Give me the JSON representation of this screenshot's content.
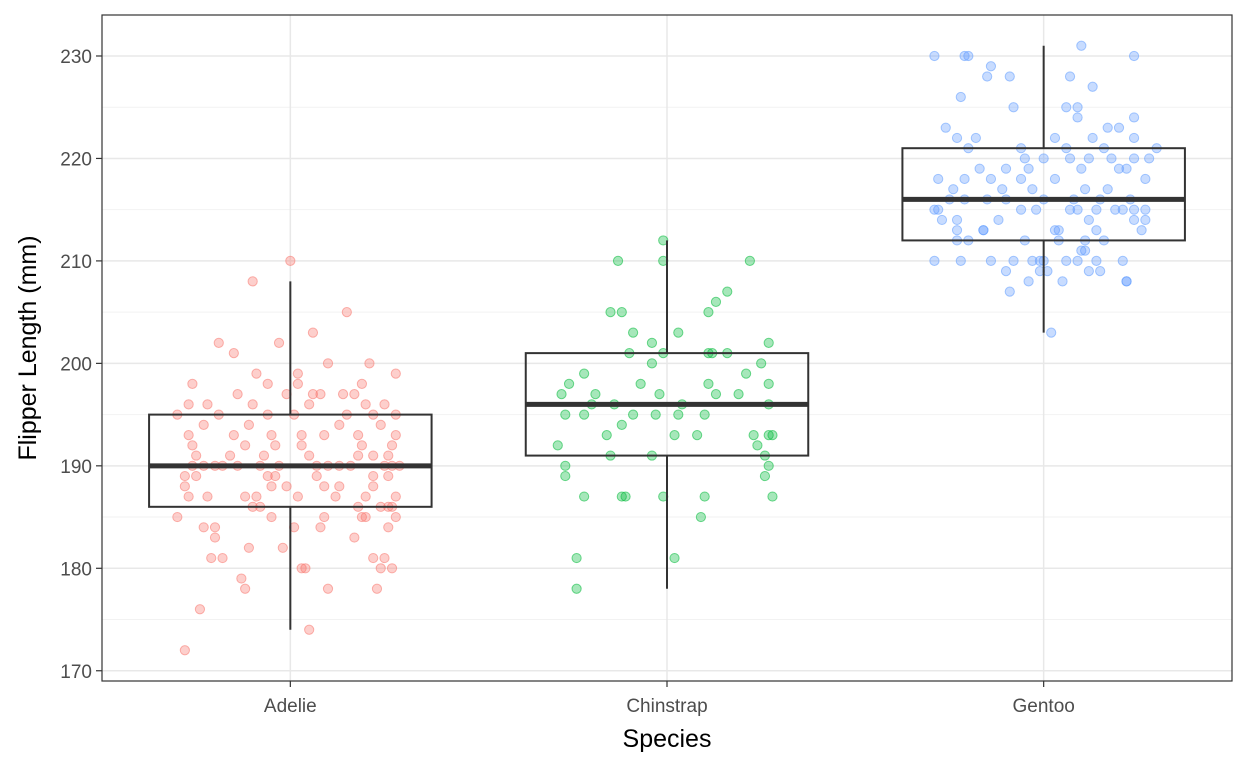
{
  "chart_data": {
    "type": "boxplot",
    "title": "",
    "xlabel": "Species",
    "ylabel": "Flipper Length (mm)",
    "ylim": [
      169,
      234
    ],
    "yticks": [
      170,
      180,
      190,
      200,
      210,
      220,
      230
    ],
    "grid": true,
    "legend": "none",
    "categories": [
      "Adelie",
      "Chinstrap",
      "Gentoo"
    ],
    "colors": [
      "#F8766D",
      "#00BA38",
      "#619CFF"
    ],
    "boxes": [
      {
        "name": "Adelie",
        "whisker_low": 174,
        "q1": 186,
        "median": 190,
        "q3": 195,
        "whisker_high": 208
      },
      {
        "name": "Chinstrap",
        "whisker_low": 178,
        "q1": 191,
        "median": 196,
        "q3": 201,
        "whisker_high": 212
      },
      {
        "name": "Gentoo",
        "whisker_low": 203,
        "q1": 212,
        "median": 216,
        "q3": 221,
        "whisker_high": 231
      }
    ],
    "points": [
      {
        "name": "Adelie",
        "y": [
          172,
          174,
          176,
          178,
          178,
          178,
          179,
          180,
          180,
          180,
          180,
          181,
          181,
          181,
          181,
          182,
          182,
          183,
          183,
          184,
          184,
          184,
          184,
          184,
          185,
          185,
          185,
          185,
          185,
          185,
          186,
          186,
          186,
          186,
          186,
          186,
          187,
          187,
          187,
          187,
          187,
          187,
          187,
          187,
          188,
          188,
          188,
          188,
          188,
          188,
          189,
          189,
          189,
          189,
          189,
          189,
          189,
          190,
          190,
          190,
          190,
          190,
          190,
          190,
          190,
          190,
          190,
          190,
          190,
          190,
          190,
          191,
          191,
          191,
          191,
          191,
          191,
          191,
          192,
          192,
          192,
          192,
          192,
          192,
          193,
          193,
          193,
          193,
          193,
          193,
          193,
          194,
          194,
          194,
          194,
          195,
          195,
          195,
          195,
          195,
          195,
          195,
          196,
          196,
          196,
          196,
          196,
          196,
          197,
          197,
          197,
          197,
          197,
          197,
          198,
          198,
          198,
          198,
          199,
          199,
          199,
          200,
          200,
          201,
          202,
          202,
          203,
          205,
          208,
          210
        ],
        "jitter": [
          -0.28,
          0.05,
          -0.24,
          -0.12,
          0.1,
          0.23,
          -0.13,
          0.03,
          0.04,
          0.24,
          0.27,
          -0.21,
          -0.18,
          0.25,
          0.22,
          -0.11,
          -0.02,
          -0.2,
          0.17,
          -0.2,
          0.08,
          0.26,
          0.01,
          -0.23,
          -0.3,
          -0.05,
          0.09,
          0.28,
          0.19,
          0.2,
          -0.08,
          0.24,
          0.27,
          -0.1,
          0.18,
          0.26,
          -0.22,
          -0.12,
          0.02,
          0.12,
          0.2,
          -0.27,
          0.28,
          -0.09,
          -0.05,
          -0.28,
          0.09,
          0.22,
          -0.01,
          0.13,
          -0.28,
          -0.25,
          0.07,
          0.22,
          -0.04,
          0.26,
          -0.06,
          -0.26,
          0.27,
          -0.08,
          0.13,
          -0.23,
          0.16,
          -0.18,
          0.25,
          -0.03,
          -0.2,
          0.29,
          0.07,
          -0.14,
          0.1,
          -0.25,
          0.05,
          -0.16,
          0.22,
          0.18,
          -0.07,
          0.26,
          -0.26,
          0.19,
          0.03,
          0.27,
          -0.04,
          -0.12,
          -0.27,
          0.18,
          0.28,
          0.09,
          -0.15,
          -0.05,
          0.03,
          -0.11,
          0.13,
          0.24,
          -0.23,
          0.01,
          -0.3,
          0.22,
          -0.06,
          0.15,
          0.28,
          -0.19,
          -0.1,
          0.05,
          0.25,
          0.2,
          -0.27,
          -0.22,
          0.06,
          -0.01,
          0.14,
          0.17,
          0.08,
          -0.14,
          0.02,
          0.19,
          -0.26,
          -0.06,
          0.02,
          0.28,
          -0.09,
          0.1,
          0.21,
          -0.15,
          -0.19,
          -0.03,
          0.06,
          0.15,
          -0.1,
          0.0
        ]
      },
      {
        "name": "Chinstrap",
        "y": [
          178,
          181,
          181,
          185,
          187,
          187,
          187,
          187,
          187,
          187,
          189,
          189,
          190,
          190,
          191,
          191,
          191,
          192,
          192,
          193,
          193,
          193,
          193,
          193,
          193,
          194,
          195,
          195,
          195,
          195,
          195,
          195,
          196,
          196,
          196,
          196,
          197,
          197,
          197,
          197,
          197,
          198,
          198,
          198,
          198,
          199,
          199,
          200,
          200,
          201,
          201,
          201,
          201,
          201,
          202,
          202,
          203,
          203,
          205,
          205,
          205,
          206,
          207,
          210,
          210,
          210,
          212
        ],
        "jitter": [
          -0.24,
          -0.24,
          0.02,
          0.09,
          -0.22,
          -0.12,
          -0.11,
          -0.01,
          0.1,
          0.28,
          -0.27,
          0.26,
          -0.27,
          0.27,
          -0.15,
          -0.04,
          0.26,
          -0.29,
          0.24,
          -0.16,
          0.02,
          0.08,
          0.23,
          0.27,
          0.28,
          -0.12,
          -0.27,
          -0.22,
          -0.09,
          -0.03,
          0.03,
          0.1,
          -0.2,
          -0.14,
          0.04,
          0.27,
          -0.28,
          -0.19,
          -0.02,
          0.13,
          0.19,
          -0.26,
          -0.07,
          0.11,
          0.27,
          -0.22,
          0.21,
          -0.04,
          0.25,
          -0.1,
          -0.01,
          0.11,
          0.12,
          0.16,
          -0.04,
          0.27,
          -0.09,
          0.03,
          -0.15,
          -0.12,
          0.11,
          0.13,
          0.16,
          -0.13,
          -0.01,
          0.22,
          -0.01
        ]
      },
      {
        "name": "Gentoo",
        "y": [
          203,
          207,
          208,
          208,
          208,
          208,
          209,
          209,
          209,
          209,
          209,
          210,
          210,
          210,
          210,
          210,
          210,
          210,
          210,
          210,
          210,
          210,
          211,
          211,
          212,
          212,
          212,
          212,
          212,
          212,
          213,
          213,
          213,
          213,
          213,
          213,
          213,
          214,
          214,
          214,
          214,
          214,
          214,
          215,
          215,
          215,
          215,
          215,
          215,
          215,
          215,
          215,
          215,
          215,
          216,
          216,
          216,
          216,
          216,
          216,
          216,
          216,
          217,
          217,
          217,
          217,
          217,
          218,
          218,
          218,
          218,
          218,
          218,
          219,
          219,
          219,
          219,
          219,
          219,
          220,
          220,
          220,
          220,
          220,
          220,
          220,
          221,
          221,
          221,
          221,
          221,
          222,
          222,
          222,
          222,
          222,
          223,
          223,
          223,
          224,
          224,
          225,
          225,
          225,
          226,
          227,
          228,
          228,
          228,
          229,
          230,
          230,
          230,
          230,
          231
        ],
        "jitter": [
          0.02,
          -0.09,
          0.05,
          0.22,
          0.22,
          -0.04,
          -0.1,
          -0.01,
          0.01,
          0.12,
          0.15,
          -0.29,
          -0.22,
          -0.14,
          -0.08,
          -0.03,
          -0.01,
          0.0,
          0.06,
          0.09,
          0.14,
          0.21,
          0.1,
          0.11,
          -0.23,
          -0.2,
          -0.05,
          0.04,
          0.11,
          0.16,
          -0.23,
          -0.16,
          -0.16,
          0.03,
          0.04,
          0.14,
          0.26,
          -0.27,
          -0.23,
          -0.12,
          0.12,
          0.24,
          0.27,
          -0.29,
          -0.28,
          -0.06,
          -0.02,
          0.07,
          0.09,
          0.14,
          0.19,
          0.21,
          0.24,
          0.27,
          -0.25,
          -0.21,
          -0.15,
          -0.1,
          0.0,
          0.08,
          0.15,
          0.23,
          -0.24,
          -0.11,
          -0.03,
          0.11,
          0.17,
          -0.28,
          -0.21,
          -0.14,
          -0.06,
          0.03,
          0.27,
          -0.17,
          -0.1,
          -0.04,
          0.1,
          0.2,
          0.22,
          -0.05,
          0.0,
          0.07,
          0.12,
          0.18,
          0.24,
          0.28,
          -0.2,
          -0.06,
          0.06,
          0.16,
          0.3,
          -0.23,
          -0.18,
          0.03,
          0.13,
          0.24,
          -0.26,
          0.17,
          0.2,
          0.09,
          0.24,
          0.06,
          0.09,
          -0.08,
          -0.22,
          0.13,
          -0.15,
          -0.09,
          0.07,
          -0.14,
          -0.29,
          -0.21,
          -0.2,
          0.24,
          0.1
        ]
      }
    ]
  }
}
